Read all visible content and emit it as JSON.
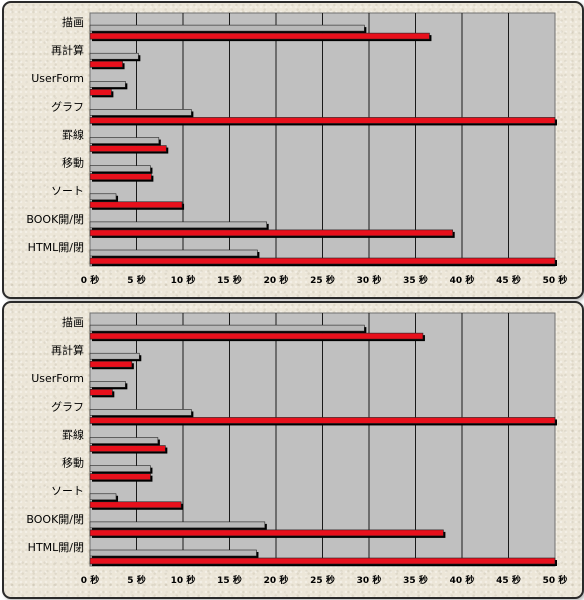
{
  "chart_data": [
    {
      "type": "bar",
      "orientation": "horizontal",
      "categories": [
        "描画",
        "再計算",
        "UserForm",
        "グラフ",
        "罫線",
        "移動",
        "ソート",
        "BOOK開/閉",
        "HTML開/閉"
      ],
      "series": [
        {
          "values": [
            29.5,
            5.2,
            3.8,
            10.9,
            7.4,
            6.5,
            2.8,
            19.0,
            18.0
          ]
        },
        {
          "values": [
            36.5,
            3.5,
            2.3,
            50,
            8.2,
            6.6,
            9.9,
            39.0,
            50
          ]
        }
      ],
      "xlim": [
        0,
        50
      ],
      "xticks": [
        "0 秒",
        "5 秒",
        "10 秒",
        "15 秒",
        "20 秒",
        "25 秒",
        "30 秒",
        "35 秒",
        "40 秒",
        "45 秒",
        "50 秒"
      ],
      "grid": true
    },
    {
      "type": "bar",
      "orientation": "horizontal",
      "categories": [
        "描画",
        "再計算",
        "UserForm",
        "グラフ",
        "罫線",
        "移動",
        "ソート",
        "BOOK開/閉",
        "HTML開/閉"
      ],
      "series": [
        {
          "values": [
            29.5,
            5.3,
            3.8,
            10.9,
            7.3,
            6.5,
            2.8,
            18.8,
            17.9
          ]
        },
        {
          "values": [
            35.8,
            4.5,
            2.4,
            50,
            8.1,
            6.5,
            9.8,
            38.0,
            50
          ]
        }
      ],
      "xlim": [
        0,
        50
      ],
      "xticks": [
        "0 秒",
        "5 秒",
        "10 秒",
        "15 秒",
        "20 秒",
        "25 秒",
        "30 秒",
        "35 秒",
        "40 秒",
        "45 秒",
        "50 秒"
      ],
      "grid": true
    }
  ],
  "colors": {
    "series_gray": "#b8b8b8",
    "series_red": "#e8101c",
    "plot_background": "#c0c0c0"
  }
}
